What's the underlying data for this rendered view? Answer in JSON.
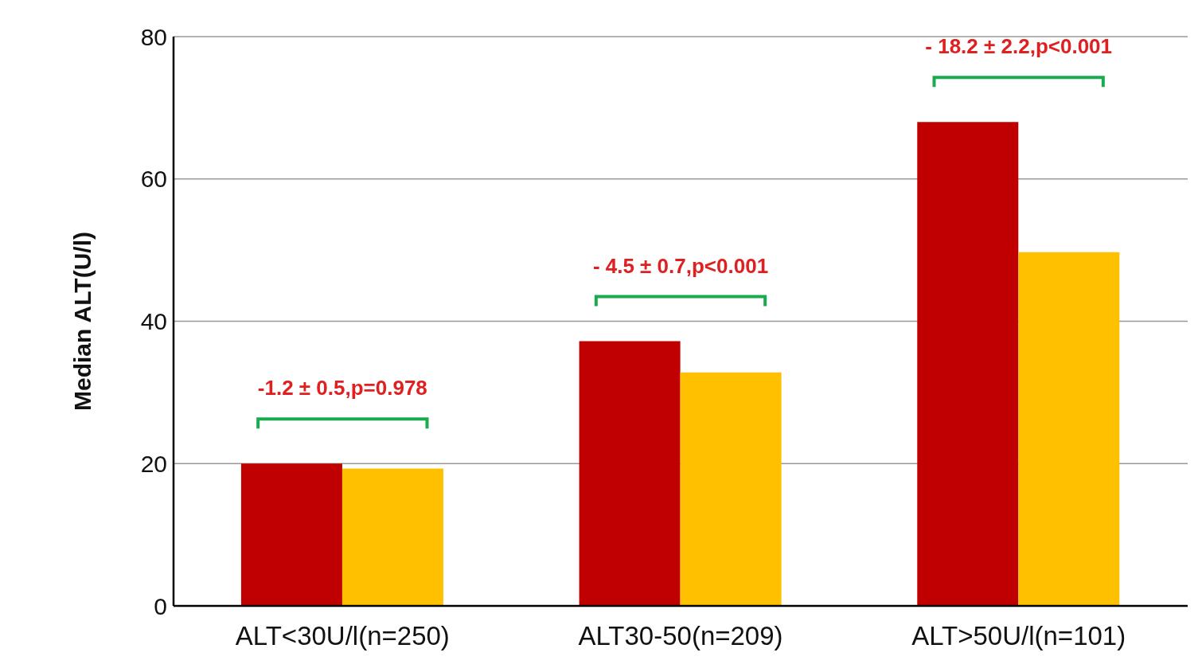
{
  "chart_data": {
    "type": "bar",
    "ylabel": "Median ALT(U/l)",
    "categories": [
      "ALT<30U/l(n=250)",
      "ALT30-50(n=209)",
      "ALT>50U/l(n=101)"
    ],
    "series": [
      {
        "color": "#c00000",
        "values": [
          20,
          37.2,
          68
        ]
      },
      {
        "color": "#ffc000",
        "values": [
          19.3,
          32.8,
          49.7
        ]
      }
    ],
    "ylim": [
      0,
      80
    ],
    "yticks": [
      0,
      20,
      40,
      60,
      80
    ],
    "grid": "y",
    "annotations": [
      "-1.2 ± 0.5,p=0.978",
      "- 4.5 ± 0.7,p<0.001",
      "- 18.2 ± 2.2,p<0.001"
    ]
  }
}
